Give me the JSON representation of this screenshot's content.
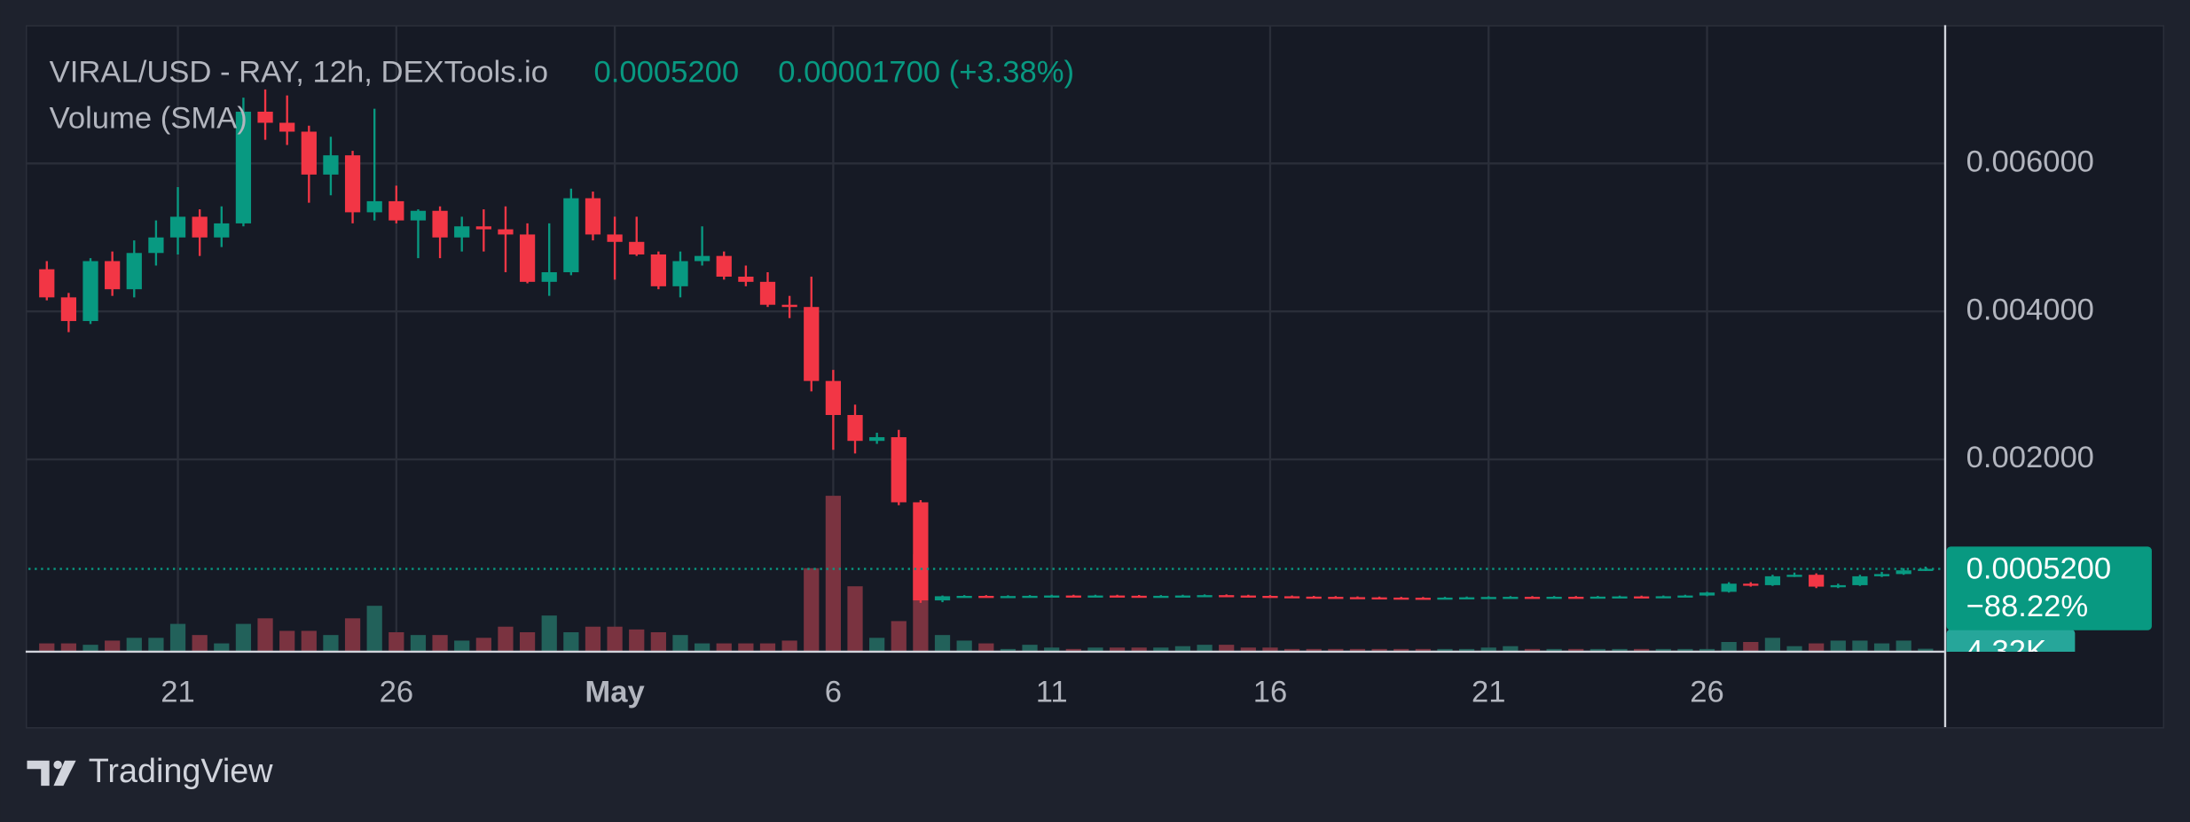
{
  "chart_data": {
    "type": "candlestick",
    "title": "VIRAL/USD - RAY, 12h, DEXTools.io",
    "last_price": {
      "value": 0.00052,
      "label": "0.0005200"
    },
    "change": "0.00001700 (+3.38%)",
    "change_pct": "−88.22%",
    "volume_title": "Volume (SMA)",
    "last_volume_label": "4.32K",
    "brand": "TradingView",
    "up_color": "#089981",
    "down_color": "#f23645",
    "volume_up_color": "#22615a",
    "volume_down_color": "#7a3340",
    "grid": true,
    "x": [
      18,
      18.5,
      19,
      19.5,
      20,
      20.5,
      21,
      21.5,
      22,
      22.5,
      23,
      23.5,
      24,
      24.5,
      25,
      25.5,
      26,
      26.5,
      27,
      27.5,
      28,
      28.5,
      29,
      29.5,
      30,
      30.5,
      31,
      31.5,
      32,
      32.5,
      33,
      33.5,
      34,
      34.5,
      35,
      35.5,
      36,
      36.5,
      37,
      37.5,
      38,
      38.5,
      39,
      39.5,
      40,
      40.5,
      41,
      41.5,
      42,
      42.5,
      43,
      43.5,
      44,
      44.5,
      45,
      45.5,
      46,
      46.5,
      47,
      47.5,
      48,
      48.5,
      49,
      49.5,
      50,
      50.5,
      51,
      51.5,
      52,
      52.5,
      53,
      53.5,
      54,
      54.5,
      55,
      55.5,
      56,
      56.5,
      57,
      57.5,
      58,
      58.5,
      59,
      59.5,
      60,
      60.5,
      61
    ],
    "open": [
      0.00457,
      0.00419,
      0.00387,
      0.00468,
      0.0043,
      0.00479,
      0.005,
      0.00528,
      0.005,
      0.00519,
      0.0067,
      0.00655,
      0.00643,
      0.00585,
      0.00611,
      0.00534,
      0.00549,
      0.00523,
      0.00536,
      0.005,
      0.00515,
      0.00511,
      0.00504,
      0.0044,
      0.00453,
      0.00553,
      0.00504,
      0.00494,
      0.00477,
      0.00434,
      0.00468,
      0.00475,
      0.00447,
      0.0044,
      0.00409,
      0.00406,
      0.00306,
      0.0026,
      0.00225,
      0.0023,
      0.00142,
      9.4e-05,
      0.00015,
      0.000155,
      0.00015,
      0.000153,
      0.000156,
      0.00016,
      0.000158,
      0.00016,
      0.000157,
      0.000153,
      0.000156,
      0.00016,
      0.000165,
      0.00016,
      0.000155,
      0.00015,
      0.000145,
      0.000142,
      0.000138,
      0.000135,
      0.000132,
      0.00013,
      0.000128,
      0.000132,
      0.000136,
      0.00014,
      0.000142,
      0.00014,
      0.000143,
      0.000141,
      0.000145,
      0.000148,
      0.000146,
      0.00015,
      0.00016,
      0.00021,
      0.00032,
      0.0003,
      0.00042,
      0.00044,
      0.00028,
      0.0003,
      0.00042,
      0.00045,
      0.0005
    ],
    "high": [
      0.00468,
      0.00425,
      0.00472,
      0.00481,
      0.00496,
      0.00523,
      0.00568,
      0.00538,
      0.00542,
      0.00689,
      0.007,
      0.00692,
      0.00651,
      0.00636,
      0.00617,
      0.00674,
      0.0057,
      0.00538,
      0.00542,
      0.00528,
      0.00538,
      0.00542,
      0.00519,
      0.00519,
      0.00566,
      0.00562,
      0.00528,
      0.00528,
      0.00481,
      0.00481,
      0.00515,
      0.00481,
      0.00462,
      0.00453,
      0.00421,
      0.00447,
      0.00321,
      0.00274,
      0.00236,
      0.0024,
      0.00145,
      0.00016,
      0.000165,
      0.000165,
      0.000163,
      0.000166,
      0.00017,
      0.00017,
      0.00017,
      0.00017,
      0.000167,
      0.000166,
      0.00017,
      0.000175,
      0.000175,
      0.00017,
      0.000165,
      0.00016,
      0.000155,
      0.000152,
      0.000148,
      0.000145,
      0.000142,
      0.00014,
      0.000142,
      0.000146,
      0.00015,
      0.000152,
      0.000152,
      0.000153,
      0.000153,
      0.000155,
      0.000158,
      0.000158,
      0.00016,
      0.00017,
      0.00021,
      0.00034,
      0.00034,
      0.00044,
      0.00047,
      0.00046,
      0.00032,
      0.00044,
      0.00048,
      0.00053,
      0.00055
    ],
    "low": [
      0.00415,
      0.00372,
      0.00383,
      0.00421,
      0.00419,
      0.00462,
      0.00477,
      0.00475,
      0.00487,
      0.00515,
      0.00632,
      0.00625,
      0.00547,
      0.00557,
      0.00519,
      0.00523,
      0.00519,
      0.00472,
      0.00472,
      0.00481,
      0.00481,
      0.00453,
      0.00438,
      0.00421,
      0.00449,
      0.00496,
      0.00443,
      0.00475,
      0.0043,
      0.00419,
      0.00462,
      0.00443,
      0.00434,
      0.00406,
      0.00391,
      0.00292,
      0.00213,
      0.00208,
      0.00221,
      0.00138,
      6e-05,
      7e-05,
      0.00014,
      0.00014,
      0.00014,
      0.000143,
      0.000146,
      0.000148,
      0.000148,
      0.000147,
      0.000143,
      0.000143,
      0.000146,
      0.00015,
      0.00015,
      0.000145,
      0.00014,
      0.000135,
      0.000132,
      0.000128,
      0.000125,
      0.000122,
      0.00012,
      0.000118,
      0.000118,
      0.000122,
      0.000126,
      0.00013,
      0.00013,
      0.00013,
      0.000131,
      0.000131,
      0.000135,
      0.000136,
      0.000136,
      0.00014,
      0.00015,
      0.0002,
      0.00028,
      0.00029,
      0.00041,
      0.00026,
      0.00026,
      0.00029,
      0.00041,
      0.00044,
      0.00049
    ],
    "close": [
      0.00419,
      0.00387,
      0.00468,
      0.0043,
      0.00479,
      0.005,
      0.00528,
      0.005,
      0.00519,
      0.0067,
      0.00655,
      0.00643,
      0.00585,
      0.00611,
      0.00534,
      0.00549,
      0.00523,
      0.00536,
      0.005,
      0.00515,
      0.00511,
      0.00504,
      0.0044,
      0.00453,
      0.00553,
      0.00504,
      0.00494,
      0.00477,
      0.00434,
      0.00468,
      0.00475,
      0.00447,
      0.0044,
      0.00409,
      0.00406,
      0.00306,
      0.0026,
      0.00225,
      0.0023,
      0.00142,
      9.4e-05,
      0.00015,
      0.000155,
      0.00015,
      0.000153,
      0.000156,
      0.00016,
      0.000158,
      0.00016,
      0.000157,
      0.000153,
      0.000156,
      0.00016,
      0.000165,
      0.00016,
      0.000155,
      0.00015,
      0.000145,
      0.000142,
      0.000138,
      0.000135,
      0.000132,
      0.00013,
      0.000128,
      0.000132,
      0.000136,
      0.00014,
      0.000142,
      0.00014,
      0.000143,
      0.000141,
      0.000145,
      0.000148,
      0.000146,
      0.00015,
      0.00016,
      0.0002,
      0.00032,
      0.0003,
      0.00042,
      0.00044,
      0.00028,
      0.0003,
      0.00042,
      0.00045,
      0.0005,
      0.00052
    ],
    "volume": [
      12000,
      12000,
      10000,
      16000,
      20000,
      20000,
      40000,
      24000,
      12000,
      40000,
      48000,
      30000,
      30000,
      24000,
      48000,
      66000,
      28000,
      24000,
      24000,
      16000,
      20000,
      36000,
      28000,
      52000,
      28000,
      36000,
      36000,
      32000,
      28000,
      24000,
      12000,
      12000,
      12000,
      12000,
      16000,
      120000,
      224000,
      94000,
      20000,
      44000,
      140000,
      24000,
      16000,
      12000,
      4000,
      10000,
      6000,
      4000,
      6000,
      6000,
      6000,
      6000,
      8000,
      10000,
      10000,
      6000,
      6000,
      4000,
      4000,
      4000,
      4000,
      4000,
      4000,
      4000,
      4000,
      4000,
      6000,
      8000,
      4000,
      4000,
      4000,
      4000,
      4000,
      4000,
      4000,
      4000,
      4000,
      14000,
      14000,
      20000,
      8000,
      12000,
      16000,
      16000,
      12000,
      16000,
      4320
    ],
    "xlim": [
      17.58,
      61.45
    ],
    "xticks": [
      {
        "value": 21,
        "label": "21"
      },
      {
        "value": 26,
        "label": "26"
      },
      {
        "value": 31,
        "label": "May"
      },
      {
        "value": 36,
        "label": "6"
      },
      {
        "value": 41,
        "label": "11"
      },
      {
        "value": 46,
        "label": "16"
      },
      {
        "value": 51,
        "label": "21"
      },
      {
        "value": 56,
        "label": "26"
      }
    ],
    "ylim": [
      -0.0006,
      0.00787
    ],
    "yticks": [
      {
        "value": 0.002,
        "label": "0.002000"
      },
      {
        "value": 0.004,
        "label": "0.004000"
      },
      {
        "value": 0.006,
        "label": "0.006000"
      }
    ],
    "volume_ylim": [
      0,
      900000
    ]
  }
}
